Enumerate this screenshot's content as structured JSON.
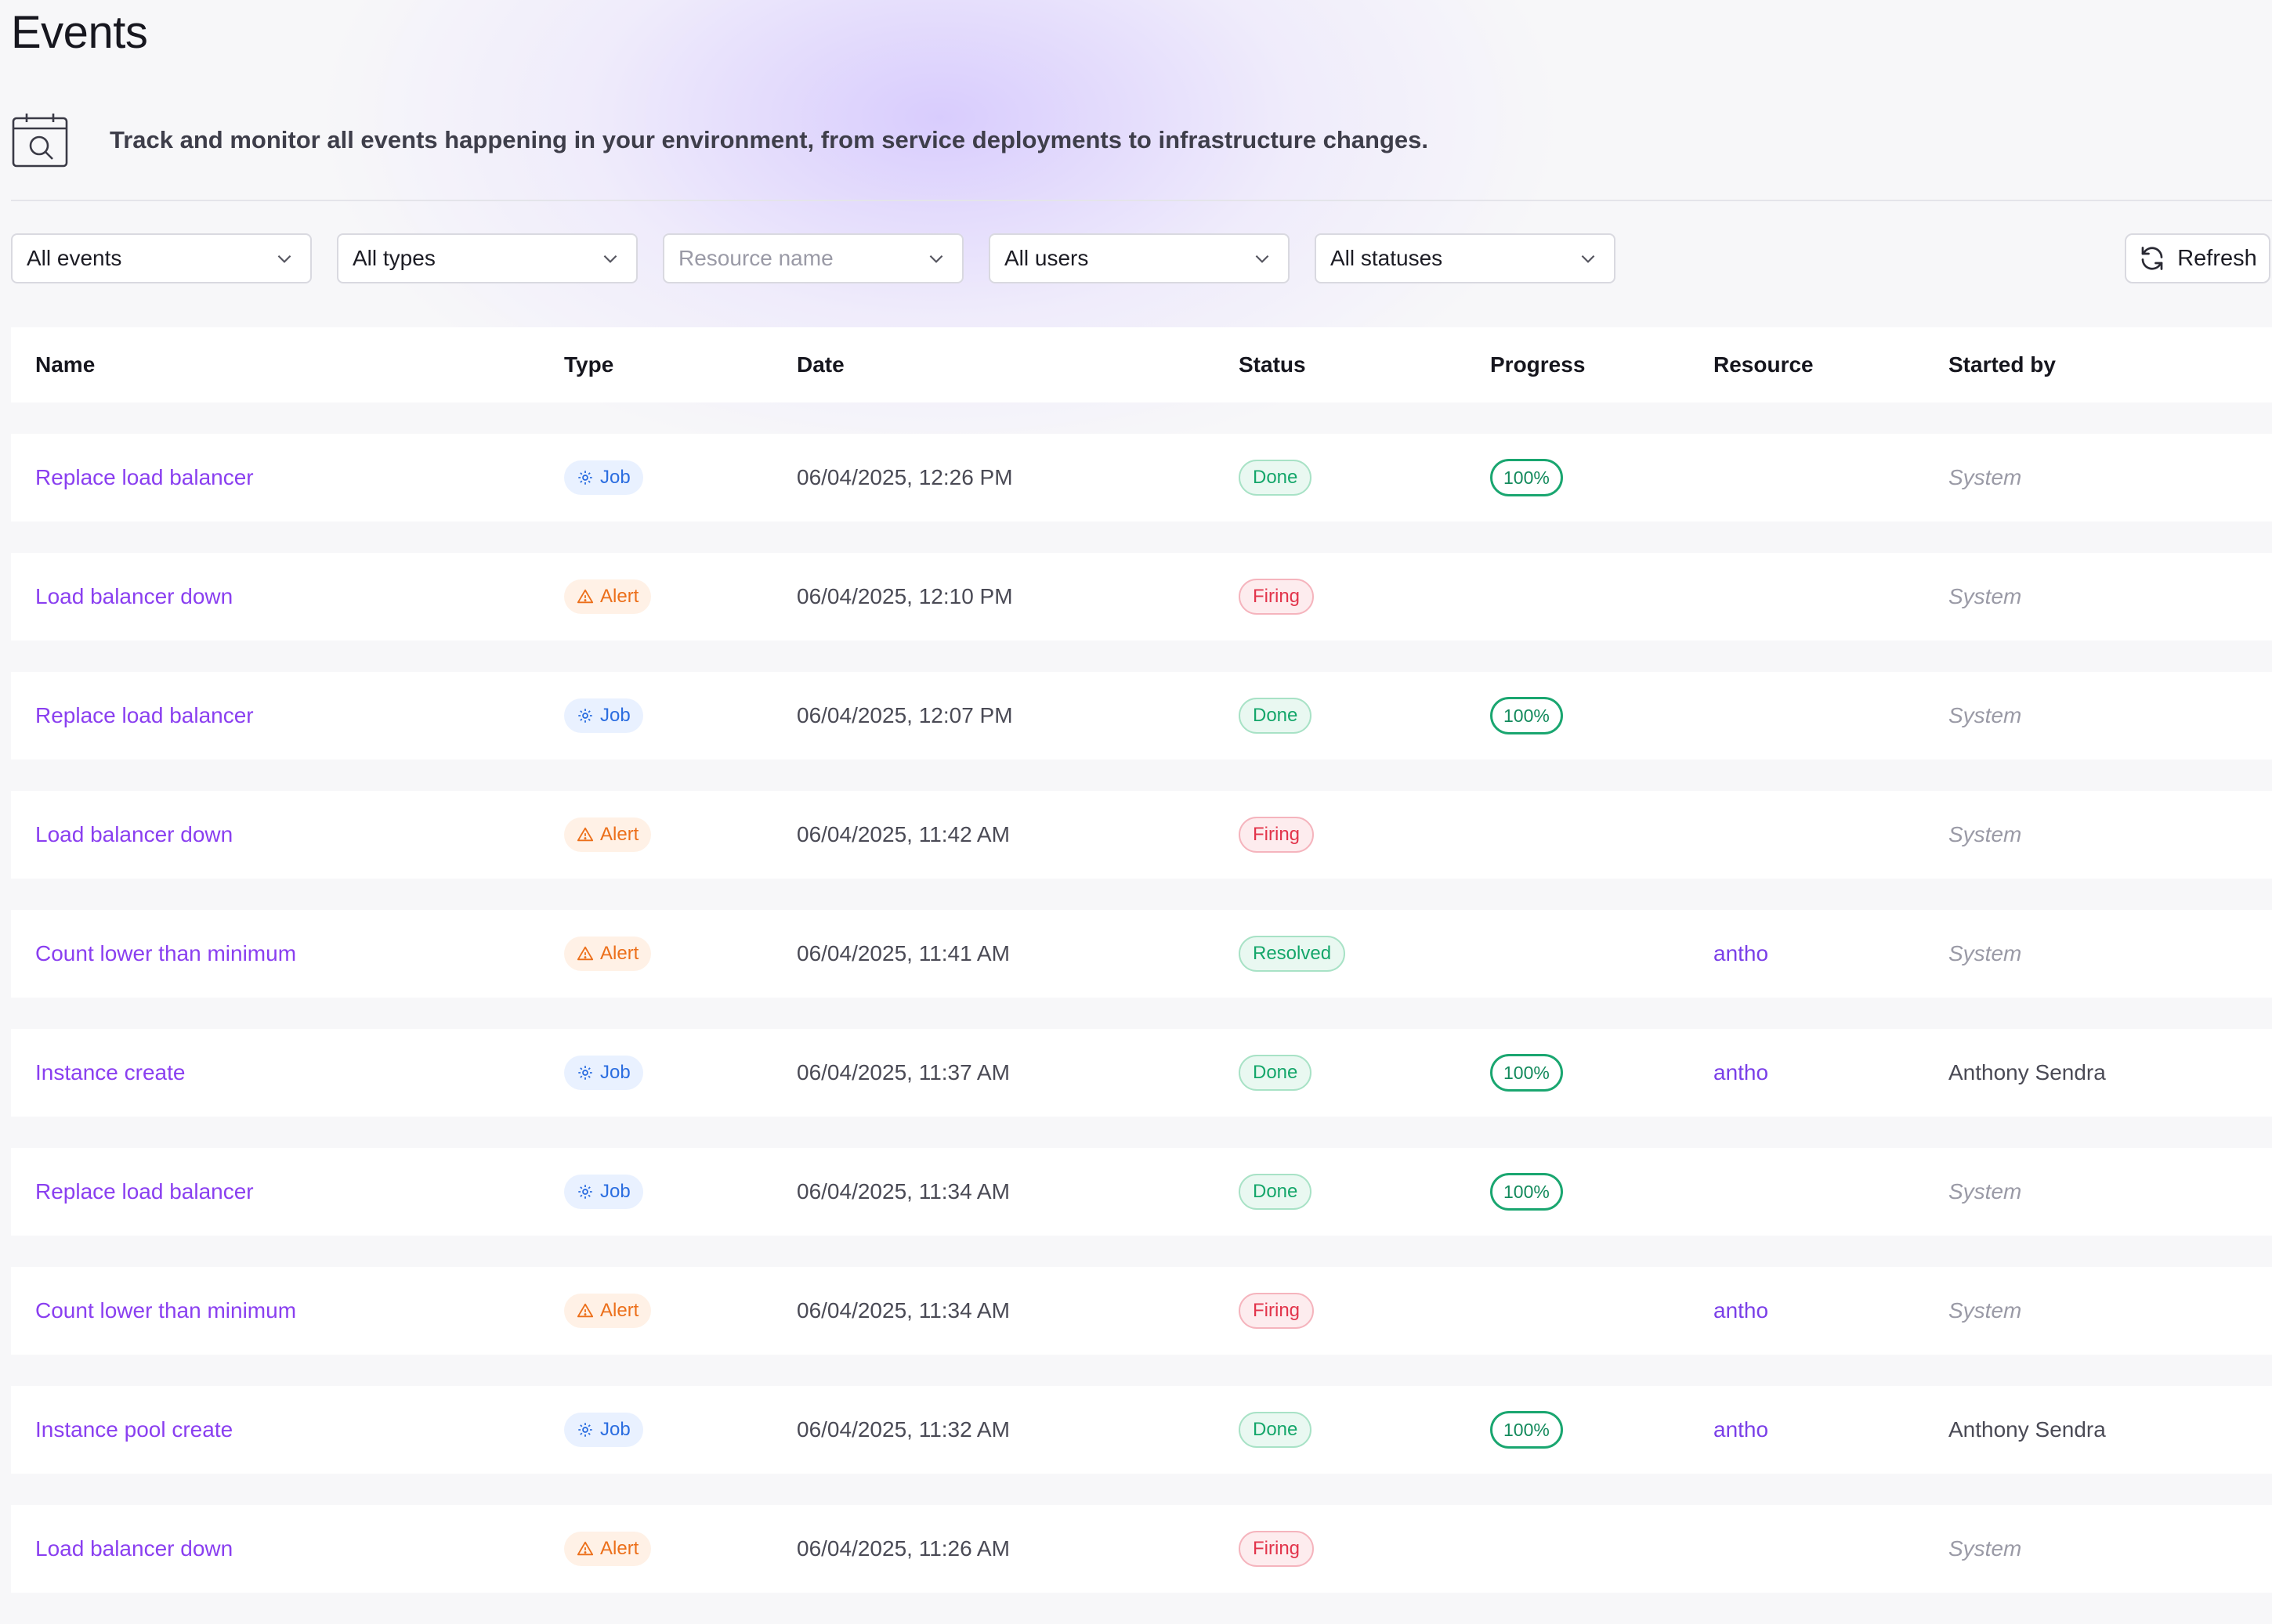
{
  "page": {
    "title": "Events",
    "description": "Track and monitor all events happening in your environment, from service deployments to infrastructure changes."
  },
  "filters": {
    "events": "All events",
    "types": "All types",
    "resource_placeholder": "Resource name",
    "users": "All users",
    "statuses": "All statuses",
    "refresh_label": "Refresh"
  },
  "table": {
    "headers": {
      "name": "Name",
      "type": "Type",
      "date": "Date",
      "status": "Status",
      "progress": "Progress",
      "resource": "Resource",
      "started_by": "Started by"
    },
    "rows": [
      {
        "name": "Replace load balancer",
        "type": "Job",
        "date": "06/04/2025, 12:26 PM",
        "status": "Done",
        "progress": "100%",
        "resource": "",
        "started_by": "System"
      },
      {
        "name": "Load balancer down",
        "type": "Alert",
        "date": "06/04/2025, 12:10 PM",
        "status": "Firing",
        "progress": "",
        "resource": "",
        "started_by": "System"
      },
      {
        "name": "Replace load balancer",
        "type": "Job",
        "date": "06/04/2025, 12:07 PM",
        "status": "Done",
        "progress": "100%",
        "resource": "",
        "started_by": "System"
      },
      {
        "name": "Load balancer down",
        "type": "Alert",
        "date": "06/04/2025, 11:42 AM",
        "status": "Firing",
        "progress": "",
        "resource": "",
        "started_by": "System"
      },
      {
        "name": "Count lower than minimum",
        "type": "Alert",
        "date": "06/04/2025, 11:41 AM",
        "status": "Resolved",
        "progress": "",
        "resource": "antho",
        "started_by": "System"
      },
      {
        "name": "Instance create",
        "type": "Job",
        "date": "06/04/2025, 11:37 AM",
        "status": "Done",
        "progress": "100%",
        "resource": "antho",
        "started_by": "Anthony Sendra"
      },
      {
        "name": "Replace load balancer",
        "type": "Job",
        "date": "06/04/2025, 11:34 AM",
        "status": "Done",
        "progress": "100%",
        "resource": "",
        "started_by": "System"
      },
      {
        "name": "Count lower than minimum",
        "type": "Alert",
        "date": "06/04/2025, 11:34 AM",
        "status": "Firing",
        "progress": "",
        "resource": "antho",
        "started_by": "System"
      },
      {
        "name": "Instance pool create",
        "type": "Job",
        "date": "06/04/2025, 11:32 AM",
        "status": "Done",
        "progress": "100%",
        "resource": "antho",
        "started_by": "Anthony Sendra"
      },
      {
        "name": "Load balancer down",
        "type": "Alert",
        "date": "06/04/2025, 11:26 AM",
        "status": "Firing",
        "progress": "",
        "resource": "",
        "started_by": "System"
      }
    ]
  },
  "colors": {
    "accent": "#8a3ff0",
    "done": "#14a66a",
    "firing": "#e2344b",
    "job": "#2b6de0",
    "alert": "#ec6f1a"
  },
  "icons": {
    "header": "calendar-search-icon",
    "dropdown": "chevron-down-icon",
    "refresh": "refresh-icon",
    "job": "gear-icon",
    "alert": "warning-triangle-icon"
  }
}
